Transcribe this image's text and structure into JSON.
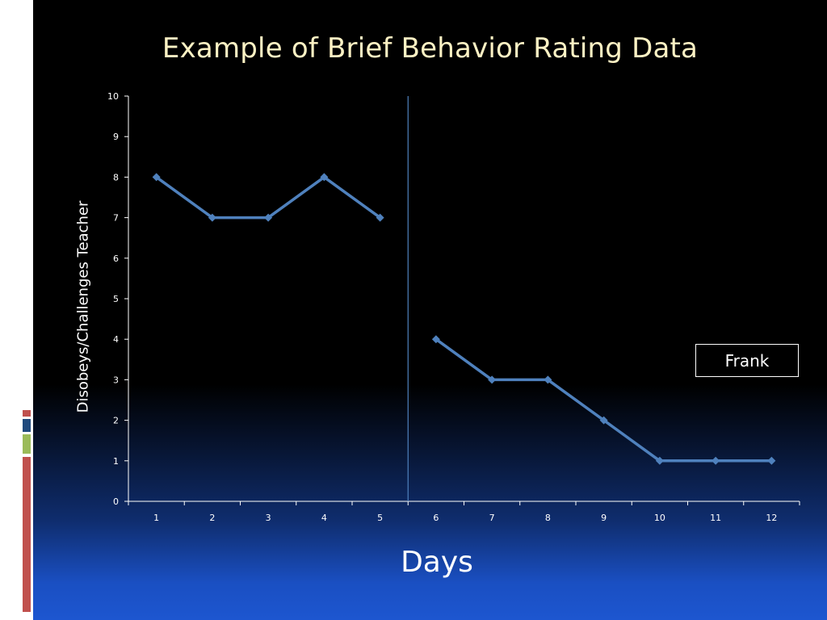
{
  "colors": {
    "series": "#4f81bd",
    "phase_line": "#4f81bd",
    "title": "#fdf2c4",
    "deco_red": "#c0504d",
    "deco_blue": "#1f497d",
    "deco_green": "#9bbb59"
  },
  "chart_data": {
    "type": "line",
    "title": "Example of Brief Behavior Rating Data",
    "xlabel": "Days",
    "ylabel": "Disobeys/Challenges Teacher",
    "ylim": [
      0,
      10
    ],
    "y_ticks": [
      "0",
      "1",
      "2",
      "3",
      "4",
      "5",
      "6",
      "7",
      "8",
      "9",
      "10"
    ],
    "categories": [
      "1",
      "2",
      "3",
      "4",
      "5",
      "6",
      "7",
      "8",
      "9",
      "10",
      "11",
      "12"
    ],
    "phase_change_after_category": "5",
    "legend_position": "right",
    "grid": false,
    "series": [
      {
        "name": "Frank",
        "segments": [
          {
            "x": [
              "1",
              "2",
              "3",
              "4",
              "5"
            ],
            "values": [
              8,
              7,
              7,
              8,
              7
            ]
          },
          {
            "x": [
              "6",
              "7",
              "8",
              "9",
              "10",
              "11",
              "12"
            ],
            "values": [
              4,
              3,
              3,
              2,
              1,
              1,
              1
            ]
          }
        ]
      }
    ]
  }
}
